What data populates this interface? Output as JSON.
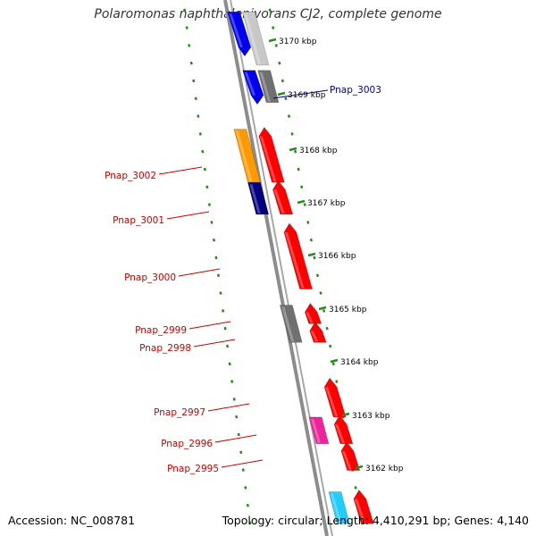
{
  "title": "Polaromonas naphthalenivorans CJ2, complete genome",
  "footer": {
    "accession": "Accession: NC_008781",
    "topology": "Topology: circular; Length: 4,410,291 bp; Genes: 4,140"
  },
  "colors": {
    "backbone": "#8a8a8a",
    "tick": "#2b8a1e",
    "label_red": "#cc0000",
    "label_blue": "#000099",
    "gene_red": "#ff0000",
    "gene_blue": "#0000ee",
    "gene_navy": "#000080",
    "gene_orange": "#ff9900",
    "gene_gray": "#707070",
    "gene_lightgray": "#c8c8c8",
    "gene_magenta": "#ee2299",
    "gene_cyan": "#22ccff"
  },
  "scale_labels": [
    "3170 kbp",
    "3169 kbp",
    "3168 kbp",
    "3167 kbp",
    "3166 kbp",
    "3165 kbp",
    "3164 kbp",
    "3163 kbp",
    "3162 kbp"
  ],
  "gene_labels": [
    {
      "id": "Pnap_3003",
      "color": "label_blue"
    },
    {
      "id": "Pnap_3002",
      "color": "label_red"
    },
    {
      "id": "Pnap_3001",
      "color": "label_red"
    },
    {
      "id": "Pnap_3000",
      "color": "label_red"
    },
    {
      "id": "Pnap_2999",
      "color": "label_red"
    },
    {
      "id": "Pnap_2998",
      "color": "label_red"
    },
    {
      "id": "Pnap_2997",
      "color": "label_red"
    },
    {
      "id": "Pnap_2996",
      "color": "label_red"
    },
    {
      "id": "Pnap_2995",
      "color": "label_red"
    }
  ],
  "features": [
    {
      "lane": "inner-mid",
      "color": "gene_lightgray",
      "start": 3170.55,
      "end": 3169.55,
      "dir": "none"
    },
    {
      "lane": "inner",
      "color": "gene_blue",
      "start": 3170.55,
      "end": 3169.75,
      "dir": "down"
    },
    {
      "lane": "inner-mid",
      "color": "gene_gray",
      "start": 3169.45,
      "end": 3168.85,
      "dir": "none"
    },
    {
      "lane": "inner",
      "color": "gene_blue",
      "start": 3169.45,
      "end": 3168.85,
      "dir": "down"
    },
    {
      "lane": "outer",
      "color": "gene_orange",
      "start": 3168.35,
      "end": 3167.35,
      "dir": "none"
    },
    {
      "lane": "inner",
      "color": "gene_red",
      "start": 3168.35,
      "end": 3167.35,
      "dir": "up"
    },
    {
      "lane": "outer",
      "color": "gene_navy",
      "start": 3167.35,
      "end": 3166.75,
      "dir": "none"
    },
    {
      "lane": "inner",
      "color": "gene_red",
      "start": 3167.35,
      "end": 3166.75,
      "dir": "up"
    },
    {
      "lane": "inner",
      "color": "gene_red",
      "start": 3166.55,
      "end": 3165.35,
      "dir": "up"
    },
    {
      "lane": "outer",
      "color": "gene_gray",
      "start": 3165.05,
      "end": 3164.35,
      "dir": "none"
    },
    {
      "lane": "inner",
      "color": "gene_red",
      "start": 3165.05,
      "end": 3164.7,
      "dir": "up"
    },
    {
      "lane": "inner",
      "color": "gene_red",
      "start": 3164.7,
      "end": 3164.35,
      "dir": "up"
    },
    {
      "lane": "inner",
      "color": "gene_red",
      "start": 3163.65,
      "end": 3162.95,
      "dir": "up"
    },
    {
      "lane": "outer",
      "color": "gene_magenta",
      "start": 3162.95,
      "end": 3162.45,
      "dir": "none"
    },
    {
      "lane": "inner",
      "color": "gene_red",
      "start": 3162.95,
      "end": 3162.45,
      "dir": "up"
    },
    {
      "lane": "inner",
      "color": "gene_red",
      "start": 3162.45,
      "end": 3161.95,
      "dir": "up"
    },
    {
      "lane": "outer",
      "color": "gene_cyan",
      "start": 3161.55,
      "end": 3160.95,
      "dir": "none"
    },
    {
      "lane": "inner",
      "color": "gene_red",
      "start": 3161.55,
      "end": 3160.95,
      "dir": "up"
    }
  ]
}
